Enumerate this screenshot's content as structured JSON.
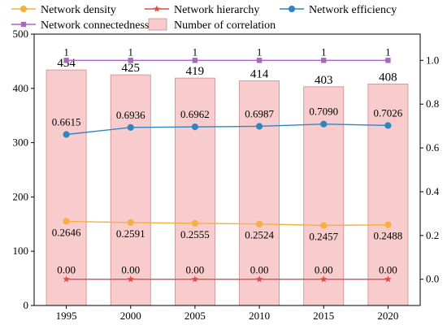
{
  "chart_data": {
    "type": "bar",
    "categories": [
      "1995",
      "2000",
      "2005",
      "2010",
      "2015",
      "2020"
    ],
    "left_axis": {
      "ylim": [
        0,
        500
      ],
      "ticks": [
        0,
        100,
        200,
        300,
        400,
        500
      ]
    },
    "right_axis": {
      "ylim": [
        -0.12,
        1.12
      ],
      "ticks": [
        0.0,
        0.2,
        0.4,
        0.6,
        0.8,
        1.0
      ],
      "tick_labels": [
        "0.0",
        "0.2",
        "0.4",
        "0.6",
        "0.8",
        "1.0"
      ]
    },
    "legend": {
      "placement": "top",
      "entries": [
        {
          "name": "Network density",
          "color": "#f5b041",
          "marker": "circle"
        },
        {
          "name": "Network hierarchy",
          "color": "#e04a4a",
          "marker": "star"
        },
        {
          "name": "Network efficiency",
          "color": "#2e86c1",
          "marker": "circle"
        },
        {
          "name": "Network connectedness",
          "color": "#a569bd",
          "marker": "square"
        },
        {
          "name": "Number of correlation",
          "color": "#f8cccc",
          "marker": "bar"
        }
      ]
    },
    "bars": {
      "name": "Number of correlation",
      "axis": "left",
      "color": "#f8cccc",
      "edge": "#c98b8b",
      "values": [
        434,
        425,
        419,
        414,
        403,
        408
      ],
      "labels": [
        "434",
        "425",
        "419",
        "414",
        "403",
        "408"
      ]
    },
    "series": [
      {
        "name": "Network connectedness",
        "axis": "right",
        "color": "#a569bd",
        "marker": "square",
        "values": [
          1,
          1,
          1,
          1,
          1,
          1
        ],
        "labels": [
          "1",
          "1",
          "1",
          "1",
          "1",
          "1"
        ]
      },
      {
        "name": "Network efficiency",
        "axis": "right",
        "color": "#2e86c1",
        "marker": "circle",
        "values": [
          0.6615,
          0.6936,
          0.6962,
          0.6987,
          0.709,
          0.7026
        ],
        "labels": [
          "0.6615",
          "0.6936",
          "0.6962",
          "0.6987",
          "0.7090",
          "0.7026"
        ]
      },
      {
        "name": "Network density",
        "axis": "right",
        "color": "#f5b041",
        "marker": "circle",
        "values": [
          0.2646,
          0.2591,
          0.2555,
          0.2524,
          0.2457,
          0.2488
        ],
        "labels": [
          "0.2646",
          "0.2591",
          "0.2555",
          "0.2524",
          "0.2457",
          "0.2488"
        ]
      },
      {
        "name": "Network hierarchy",
        "axis": "right",
        "color": "#e04a4a",
        "marker": "star",
        "values": [
          0.0,
          0.0,
          0.0,
          0.0,
          0.0,
          0.0
        ],
        "labels": [
          "0.00",
          "0.00",
          "0.00",
          "0.00",
          "0.00",
          "0.00"
        ]
      }
    ]
  }
}
